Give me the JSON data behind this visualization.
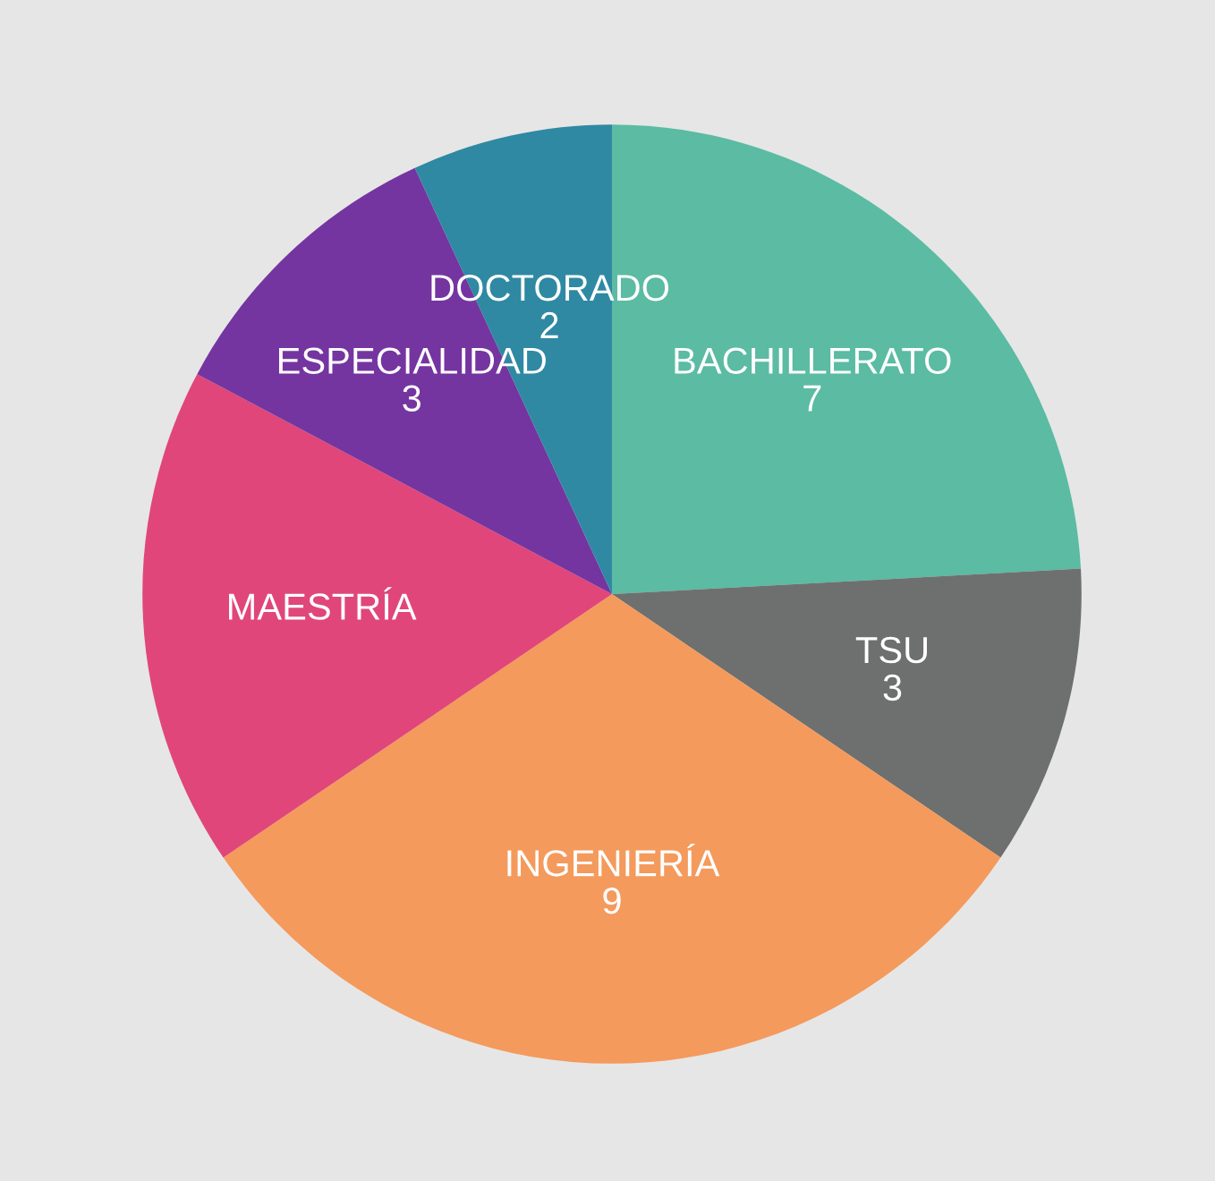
{
  "chart_data": {
    "type": "pie",
    "categories": [
      "BACHILLERATO",
      "TSU",
      "INGENIERÍA",
      "MAESTRÍA",
      "ESPECIALIDAD",
      "DOCTORADO"
    ],
    "values": [
      7,
      3,
      9,
      5,
      3,
      2
    ],
    "value_labels": [
      "7",
      "3",
      "9",
      null,
      "3",
      "2"
    ],
    "colors": [
      "#5bbba3",
      "#6e706f",
      "#f49a5c",
      "#e0467a",
      "#7535a0",
      "#2f89a3"
    ]
  }
}
